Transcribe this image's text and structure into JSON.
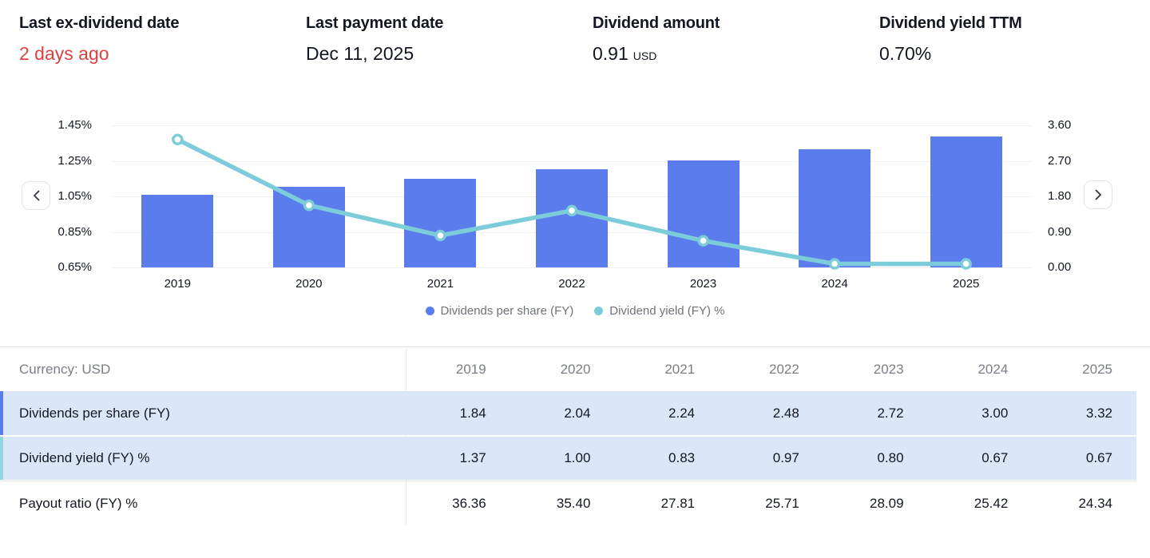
{
  "stats": [
    {
      "label": "Last ex-dividend date",
      "value": "2 days ago"
    },
    {
      "label": "Last payment date",
      "value": "Dec 11, 2025"
    },
    {
      "label": "Dividend amount",
      "value": "0.91",
      "suffix": "USD"
    },
    {
      "label": "Dividend yield TTM",
      "value": "0.70%"
    }
  ],
  "chart_data": {
    "type": "bar+line",
    "categories": [
      "2019",
      "2020",
      "2021",
      "2022",
      "2023",
      "2024",
      "2025"
    ],
    "series": [
      {
        "name": "Dividends per share (FY)",
        "type": "bar",
        "axis": "right",
        "color": "#5b7cec",
        "values": [
          1.84,
          2.04,
          2.24,
          2.48,
          2.72,
          3.0,
          3.32
        ]
      },
      {
        "name": "Dividend yield (FY) %",
        "type": "line",
        "axis": "left",
        "color": "#7dccd9",
        "values": [
          1.37,
          1.0,
          0.83,
          0.97,
          0.8,
          0.67,
          0.67
        ]
      }
    ],
    "left_axis": {
      "ticks": [
        "1.45%",
        "1.25%",
        "1.05%",
        "0.85%",
        "0.65%"
      ],
      "min": 0.65,
      "max": 1.45
    },
    "right_axis": {
      "ticks": [
        "3.60",
        "2.70",
        "1.80",
        "0.90",
        "0.00"
      ],
      "min": 0.0,
      "max": 3.6
    },
    "grid": true,
    "legend_position": "bottom"
  },
  "nav": {
    "prev": "‹",
    "next": "›"
  },
  "table": {
    "corner_label": "Currency: USD",
    "columns": [
      "2019",
      "2020",
      "2021",
      "2022",
      "2023",
      "2024",
      "2025"
    ],
    "rows": [
      {
        "label": "Dividends per share (FY)",
        "highlighted": true,
        "accent": "#5b7cec",
        "values": [
          "1.84",
          "2.04",
          "2.24",
          "2.48",
          "2.72",
          "3.00",
          "3.32"
        ]
      },
      {
        "label": "Dividend yield (FY) %",
        "highlighted": true,
        "accent": "#90d6e0",
        "values": [
          "1.37",
          "1.00",
          "0.83",
          "0.97",
          "0.80",
          "0.67",
          "0.67"
        ]
      },
      {
        "label": "Payout ratio (FY) %",
        "highlighted": false,
        "accent": "",
        "values": [
          "36.36",
          "35.40",
          "27.81",
          "25.71",
          "28.09",
          "25.42",
          "24.34"
        ]
      }
    ]
  },
  "colors": {
    "bar": "#5b7cec",
    "line": "#7dccd9",
    "red_value": "#db4242",
    "highlight_row_bg": "#dbe7f8",
    "muted_text": "#7b7e88"
  }
}
